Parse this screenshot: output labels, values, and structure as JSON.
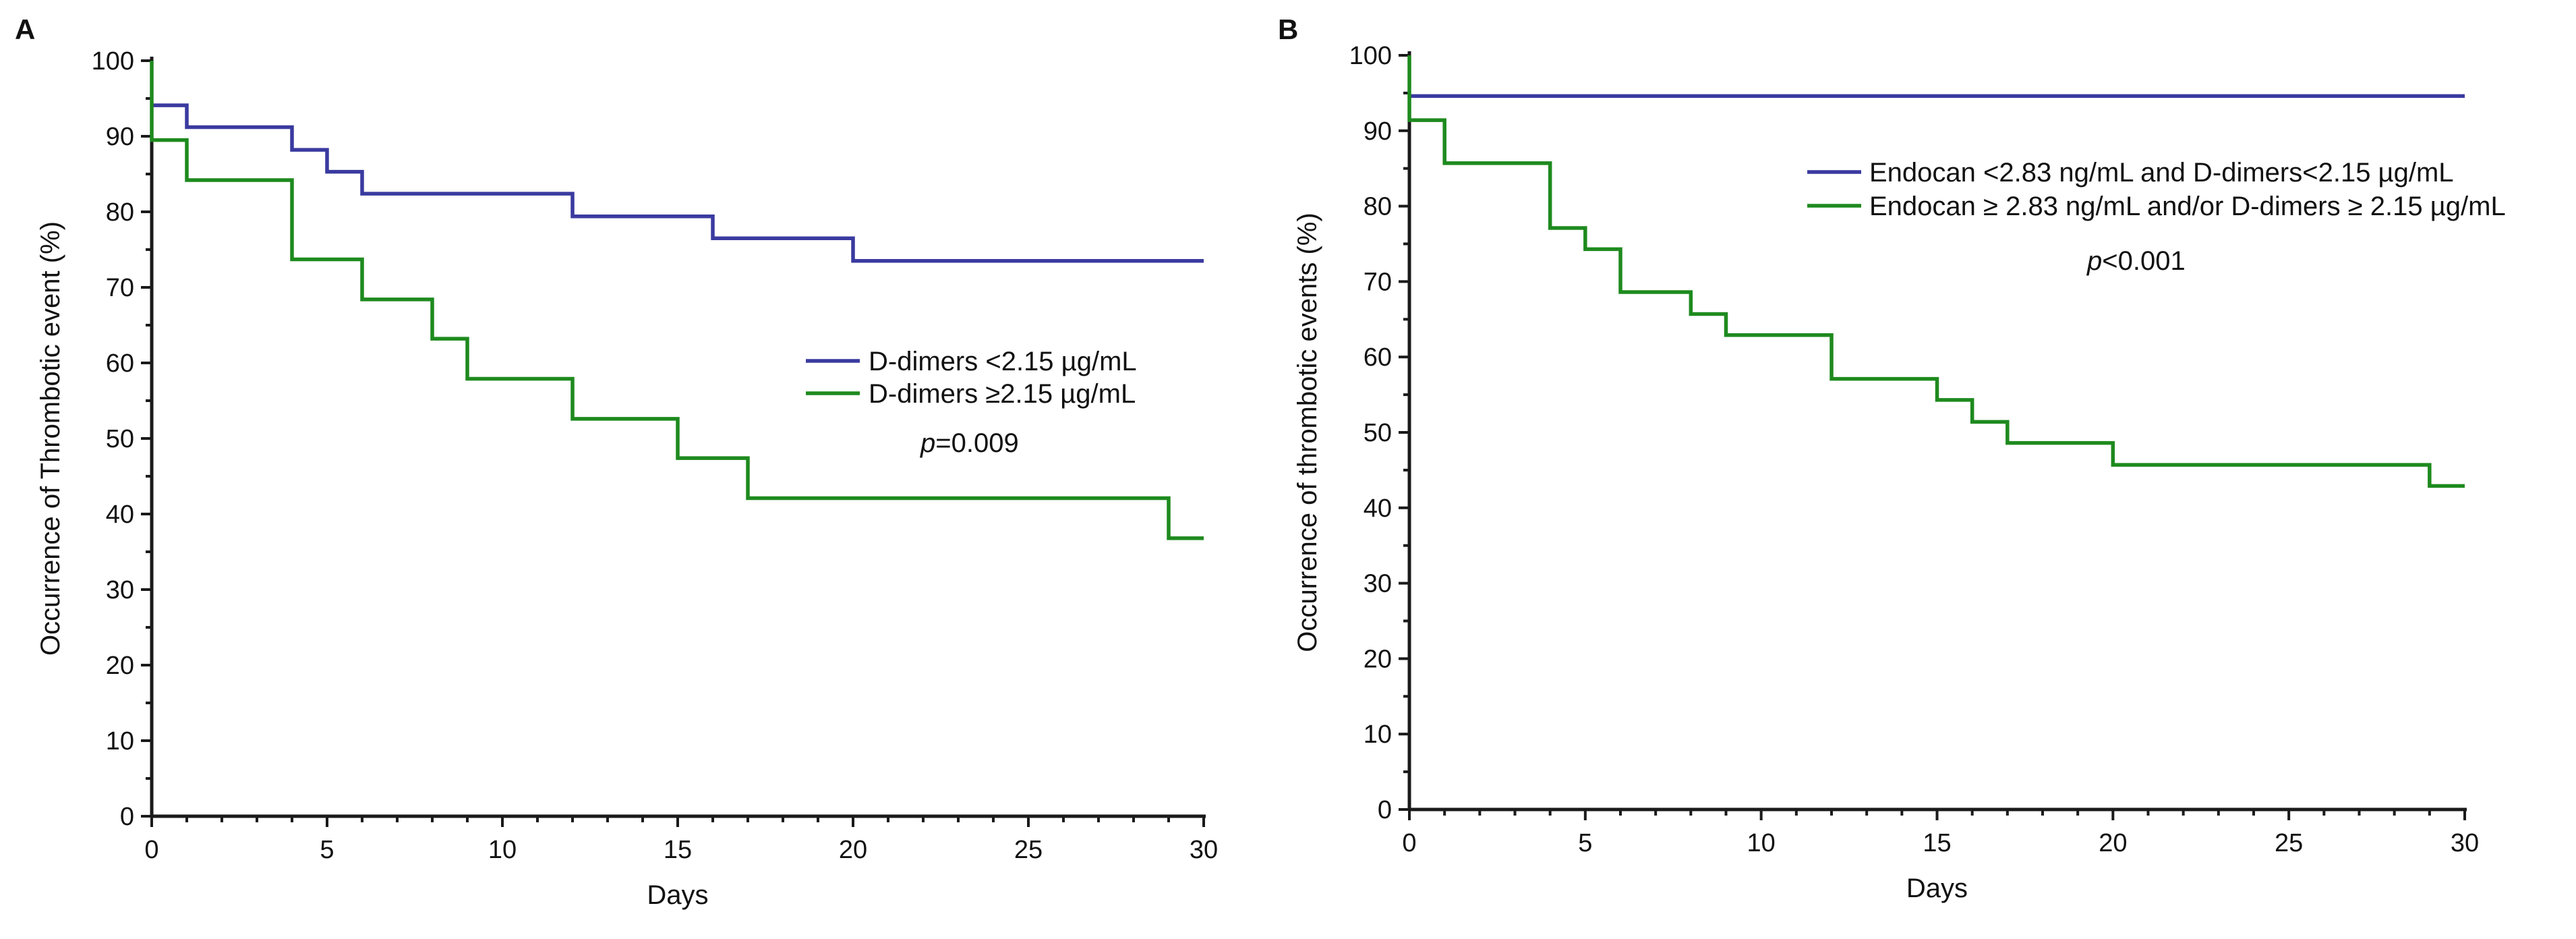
{
  "colors": {
    "blue": "#3a3aa0",
    "green": "#1e8a1e"
  },
  "chart_data": [
    {
      "panel_label": "A",
      "type": "line",
      "step": true,
      "xlabel": "Days",
      "ylabel": "Occurrence of Thrombotic event (%)",
      "xlim": [
        0,
        30
      ],
      "ylim": [
        0,
        100
      ],
      "xticks": [
        "0",
        "5",
        "10",
        "15",
        "20",
        "25",
        "30"
      ],
      "yticks": [
        "0",
        "10",
        "20",
        "30",
        "40",
        "50",
        "60",
        "70",
        "80",
        "90",
        "100"
      ],
      "legend": "right",
      "annotation": {
        "italic": "p",
        "rest": "=0.009"
      },
      "series": [
        {
          "name": "D-dimers <2.15 µg/mL",
          "color": "blue",
          "x": [
            0,
            1,
            4,
            5,
            6,
            12,
            16,
            20,
            30
          ],
          "y": [
            94.1,
            91.2,
            88.2,
            85.3,
            82.4,
            79.4,
            76.5,
            73.5,
            73.5
          ]
        },
        {
          "name": "D-dimers ≥2.15 µg/mL",
          "color": "green",
          "x": [
            0,
            0,
            1,
            4,
            6,
            8,
            9,
            12,
            15,
            17,
            29,
            30
          ],
          "y": [
            100,
            89.5,
            84.2,
            73.7,
            68.4,
            63.2,
            57.9,
            52.6,
            47.4,
            42.1,
            36.8,
            36.8
          ]
        }
      ]
    },
    {
      "panel_label": "B",
      "type": "line",
      "step": true,
      "xlabel": "Days",
      "ylabel": "Occurrence of thrombotic events (%)",
      "xlim": [
        0,
        30
      ],
      "ylim": [
        0,
        100
      ],
      "xticks": [
        "0",
        "5",
        "10",
        "15",
        "20",
        "25",
        "30"
      ],
      "yticks": [
        "0",
        "10",
        "20",
        "30",
        "40",
        "50",
        "60",
        "70",
        "80",
        "90",
        "100"
      ],
      "legend": "top-right",
      "annotation": {
        "italic": "p",
        "rest": "<0.001"
      },
      "series": [
        {
          "name": "Endocan <2.83 ng/mL and D-dimers<2.15 µg/mL",
          "color": "blue",
          "x": [
            0,
            30
          ],
          "y": [
            94.6,
            94.6
          ]
        },
        {
          "name": "Endocan ≥ 2.83 ng/mL and/or D-dimers ≥ 2.15 µg/mL",
          "color": "green",
          "x": [
            0,
            0,
            1,
            4,
            5,
            6,
            8,
            9,
            12,
            15,
            16,
            17,
            20,
            29,
            30
          ],
          "y": [
            100,
            91.4,
            85.7,
            77.1,
            74.3,
            68.6,
            65.7,
            62.9,
            57.1,
            54.3,
            51.4,
            48.6,
            45.7,
            42.9,
            42.9
          ]
        }
      ]
    }
  ]
}
